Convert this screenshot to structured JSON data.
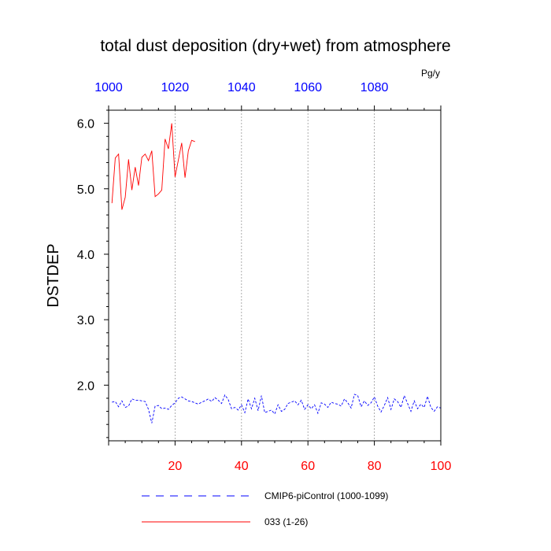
{
  "chart_data": {
    "type": "line",
    "title": "total dust deposition (dry+wet) from atmosphere",
    "units": "Pg/y",
    "ylabel": "DSTDEP",
    "xlabel": "",
    "xlim": [
      0,
      100
    ],
    "ylim": [
      1.15,
      6.2
    ],
    "yticks": [
      2.0,
      3.0,
      4.0,
      5.0,
      6.0
    ],
    "ytick_labels": [
      "2.0",
      "3.0",
      "4.0",
      "5.0",
      "6.0"
    ],
    "xticks_bottom": [
      20,
      40,
      60,
      80,
      100
    ],
    "xtick_labels_bottom": [
      "20",
      "40",
      "60",
      "80",
      "100"
    ],
    "xticks_top": [
      0,
      20,
      40,
      60,
      80
    ],
    "xtick_labels_top": [
      "1000",
      "1020",
      "1040",
      "1060",
      "1080"
    ],
    "grid": "vertical dashed at major x ticks",
    "legend_placement": "bottom",
    "colors": {
      "bottom_axis_labels": "#ff0000",
      "top_axis_labels": "#0000ff"
    },
    "series": [
      {
        "name": "CMIP6-piControl (1000-1099)",
        "color": "#0000ff",
        "dash": "dashed",
        "x": [
          1,
          2,
          3,
          4,
          5,
          6,
          7,
          8,
          9,
          10,
          11,
          12,
          13,
          14,
          15,
          16,
          17,
          18,
          19,
          20,
          21,
          22,
          23,
          24,
          25,
          26,
          27,
          28,
          29,
          30,
          31,
          32,
          33,
          34,
          35,
          36,
          37,
          38,
          39,
          40,
          41,
          42,
          43,
          44,
          45,
          46,
          47,
          48,
          49,
          50,
          51,
          52,
          53,
          54,
          55,
          56,
          57,
          58,
          59,
          60,
          61,
          62,
          63,
          64,
          65,
          66,
          67,
          68,
          69,
          70,
          71,
          72,
          73,
          74,
          75,
          76,
          77,
          78,
          79,
          80,
          81,
          82,
          83,
          84,
          85,
          86,
          87,
          88,
          89,
          90,
          91,
          92,
          93,
          94,
          95,
          96,
          97,
          98,
          99,
          100
        ],
        "y": [
          1.74,
          1.75,
          1.67,
          1.76,
          1.66,
          1.68,
          1.79,
          1.77,
          1.77,
          1.76,
          1.75,
          1.63,
          1.42,
          1.68,
          1.69,
          1.64,
          1.65,
          1.63,
          1.69,
          1.73,
          1.8,
          1.82,
          1.79,
          1.76,
          1.75,
          1.73,
          1.71,
          1.74,
          1.76,
          1.79,
          1.75,
          1.81,
          1.77,
          1.72,
          1.85,
          1.78,
          1.64,
          1.66,
          1.62,
          1.7,
          1.58,
          1.79,
          1.64,
          1.8,
          1.61,
          1.84,
          1.58,
          1.6,
          1.62,
          1.56,
          1.7,
          1.6,
          1.63,
          1.72,
          1.74,
          1.76,
          1.7,
          1.77,
          1.63,
          1.7,
          1.64,
          1.7,
          1.57,
          1.73,
          1.71,
          1.66,
          1.74,
          1.72,
          1.71,
          1.68,
          1.79,
          1.73,
          1.65,
          1.86,
          1.84,
          1.67,
          1.76,
          1.69,
          1.73,
          1.82,
          1.68,
          1.59,
          1.69,
          1.81,
          1.63,
          1.79,
          1.75,
          1.66,
          1.84,
          1.72,
          1.6,
          1.76,
          1.64,
          1.71,
          1.66,
          1.83,
          1.66,
          1.6,
          1.67,
          1.65
        ]
      },
      {
        "name": "033 (1-26)",
        "color": "#ff0000",
        "dash": "solid",
        "x": [
          1,
          2,
          3,
          4,
          5,
          6,
          7,
          8,
          9,
          10,
          11,
          12,
          13,
          14,
          15,
          16,
          17,
          18,
          19,
          20,
          21,
          22,
          23,
          24,
          25,
          26
        ],
        "y": [
          4.78,
          5.47,
          5.53,
          4.68,
          4.87,
          5.45,
          4.98,
          5.33,
          5.05,
          5.48,
          5.53,
          5.43,
          5.58,
          4.88,
          4.92,
          4.98,
          5.76,
          5.61,
          6.0,
          5.18,
          5.44,
          5.7,
          5.17,
          5.58,
          5.74,
          5.72
        ]
      }
    ]
  }
}
